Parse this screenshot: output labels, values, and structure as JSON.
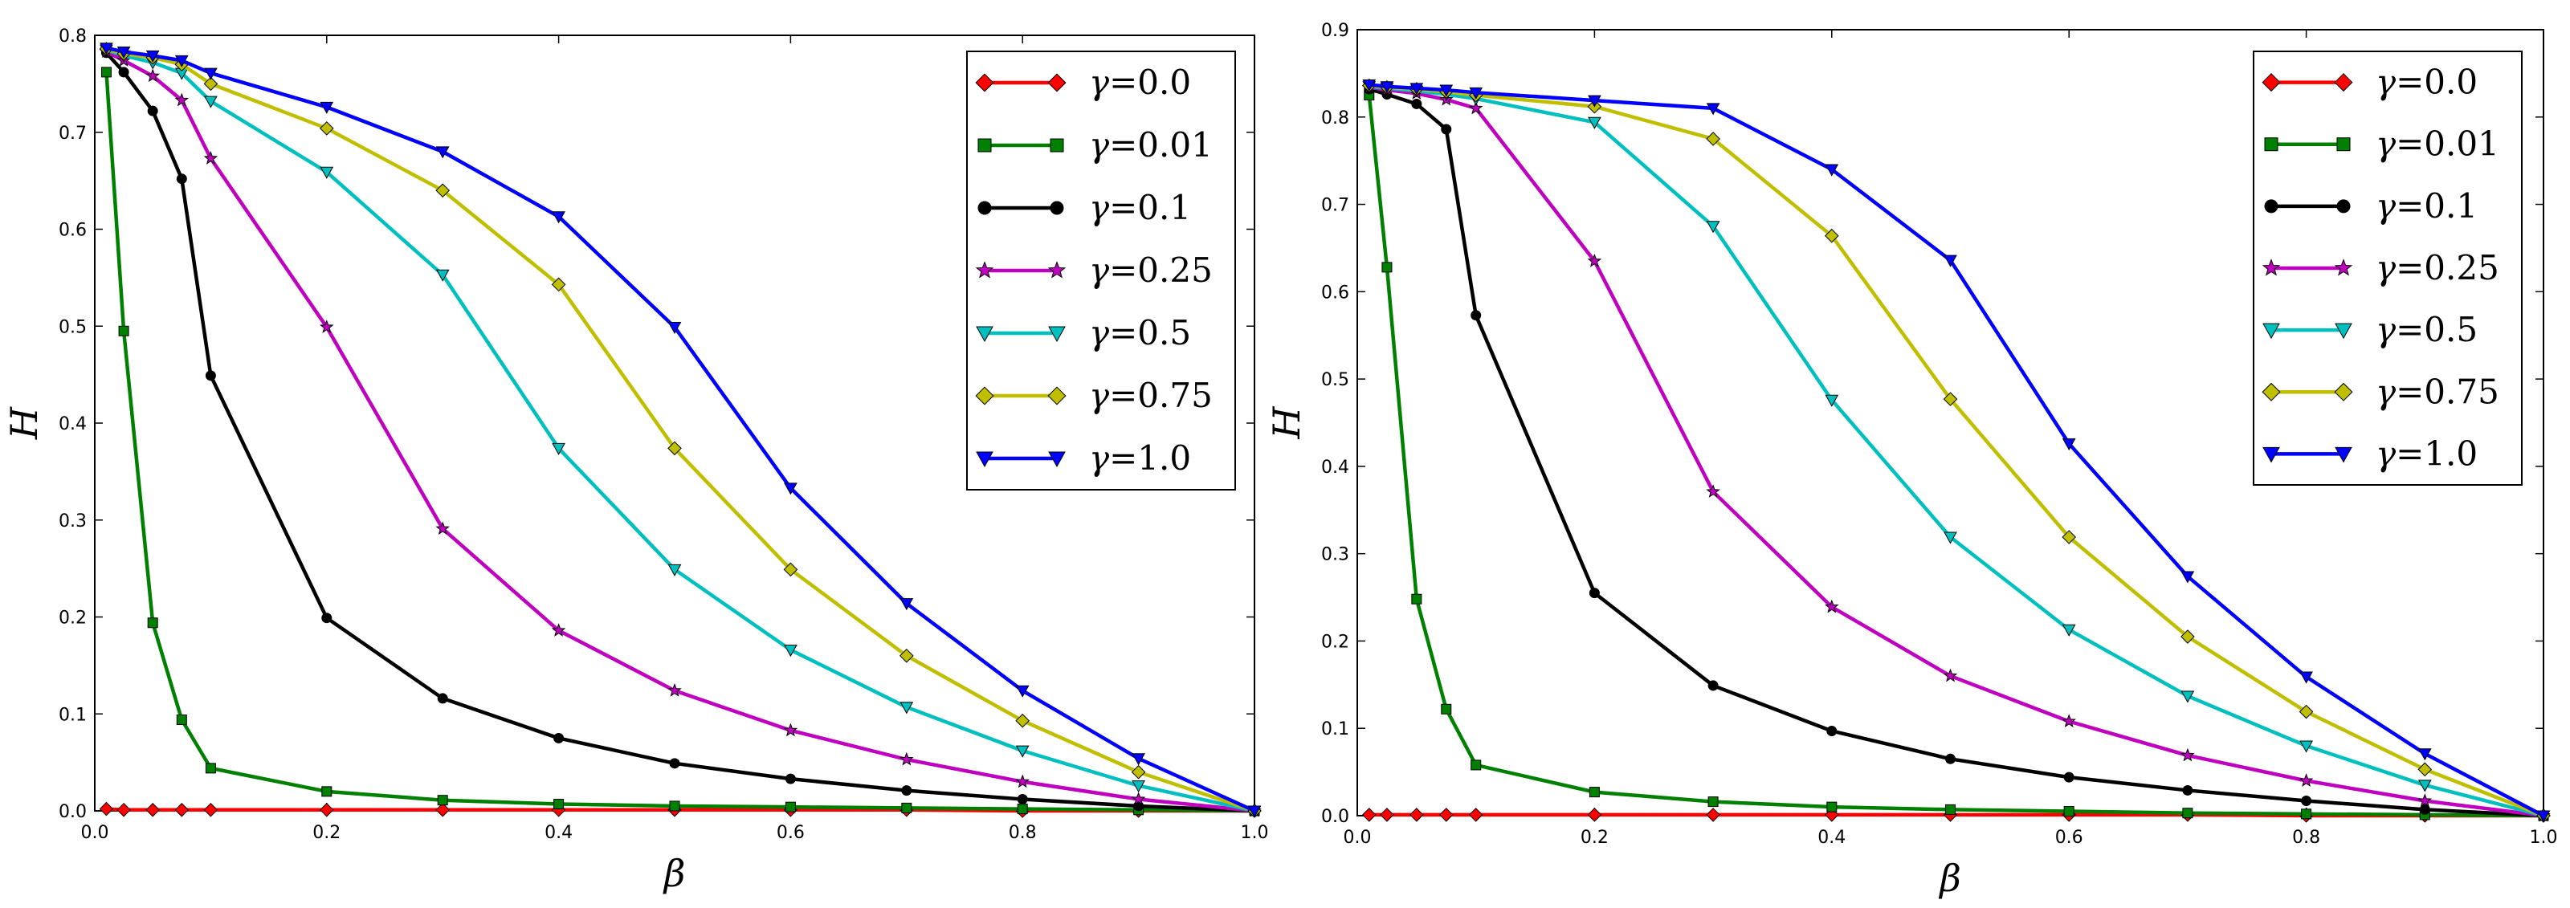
{
  "chart_data": [
    {
      "type": "line",
      "title": "",
      "xlabel": "β",
      "ylabel": "H",
      "xlim": [
        0.0,
        1.0
      ],
      "ylim": [
        0.0,
        0.8
      ],
      "xticks": [
        "0.0",
        "0.2",
        "0.4",
        "0.6",
        "0.8",
        "1.0"
      ],
      "yticks": [
        "0.0",
        "0.1",
        "0.2",
        "0.3",
        "0.4",
        "0.5",
        "0.6",
        "0.7",
        "0.8"
      ],
      "xtick_values": [
        0,
        0.2,
        0.4,
        0.6,
        0.8,
        1.0
      ],
      "ytick_values": [
        0,
        0.1,
        0.2,
        0.3,
        0.4,
        0.5,
        0.6,
        0.7,
        0.8
      ],
      "grid": false,
      "legend_position": "top-right",
      "series": [
        {
          "name": "γ=0.0",
          "gamma_symbol": "γ",
          "gamma_value": "=0.0",
          "color": "#ff0000",
          "marker": "diamond",
          "x": [
            0.01,
            0.025,
            0.05,
            0.075,
            0.1,
            0.2,
            0.3,
            0.4,
            0.5,
            0.6,
            0.7,
            0.8,
            0.9,
            1.0
          ],
          "y": [
            0.002,
            0.001,
            0.001,
            0.001,
            0.001,
            0.001,
            0.001,
            0.001,
            0.001,
            0.001,
            0.001,
            0.0,
            0.0,
            0.0
          ]
        },
        {
          "name": "γ=0.01",
          "gamma_symbol": "γ",
          "gamma_value": "=0.01",
          "color": "#008000",
          "marker": "square",
          "x": [
            0.01,
            0.025,
            0.05,
            0.075,
            0.1,
            0.2,
            0.3,
            0.4,
            0.5,
            0.6,
            0.7,
            0.8,
            0.9,
            1.0
          ],
          "y": [
            0.762,
            0.495,
            0.194,
            0.094,
            0.044,
            0.02,
            0.011,
            0.007,
            0.005,
            0.004,
            0.003,
            0.002,
            0.001,
            0.0
          ]
        },
        {
          "name": "γ=0.1",
          "gamma_symbol": "γ",
          "gamma_value": "=0.1",
          "color": "#000000",
          "marker": "circle",
          "x": [
            0.01,
            0.025,
            0.05,
            0.075,
            0.1,
            0.2,
            0.3,
            0.4,
            0.5,
            0.6,
            0.7,
            0.8,
            0.9,
            1.0
          ],
          "y": [
            0.782,
            0.762,
            0.722,
            0.652,
            0.449,
            0.199,
            0.116,
            0.075,
            0.049,
            0.033,
            0.021,
            0.012,
            0.005,
            0.0
          ]
        },
        {
          "name": "γ=0.25",
          "gamma_symbol": "γ",
          "gamma_value": "=0.25",
          "color": "#bf00bf",
          "marker": "star",
          "x": [
            0.01,
            0.025,
            0.05,
            0.075,
            0.1,
            0.2,
            0.3,
            0.4,
            0.5,
            0.6,
            0.7,
            0.8,
            0.9,
            1.0
          ],
          "y": [
            0.783,
            0.774,
            0.758,
            0.733,
            0.673,
            0.499,
            0.291,
            0.186,
            0.124,
            0.083,
            0.053,
            0.03,
            0.012,
            0.0
          ]
        },
        {
          "name": "γ=0.5",
          "gamma_symbol": "γ",
          "gamma_value": "=0.5",
          "color": "#00bfbf",
          "marker": "triangle-down",
          "x": [
            0.01,
            0.025,
            0.05,
            0.075,
            0.1,
            0.2,
            0.3,
            0.4,
            0.5,
            0.6,
            0.7,
            0.8,
            0.9,
            1.0
          ],
          "y": [
            0.785,
            0.779,
            0.772,
            0.761,
            0.732,
            0.659,
            0.553,
            0.374,
            0.249,
            0.166,
            0.107,
            0.062,
            0.026,
            0.0
          ]
        },
        {
          "name": "γ=0.75",
          "gamma_symbol": "γ",
          "gamma_value": "=0.75",
          "color": "#bfbf00",
          "marker": "diamond",
          "x": [
            0.01,
            0.025,
            0.05,
            0.075,
            0.1,
            0.2,
            0.3,
            0.4,
            0.5,
            0.6,
            0.7,
            0.8,
            0.9,
            1.0
          ],
          "y": [
            0.786,
            0.781,
            0.777,
            0.77,
            0.75,
            0.704,
            0.64,
            0.543,
            0.374,
            0.249,
            0.16,
            0.093,
            0.04,
            0.0
          ]
        },
        {
          "name": "γ=1.0",
          "gamma_symbol": "γ",
          "gamma_value": "=1.0",
          "color": "#0000ff",
          "marker": "triangle-down",
          "x": [
            0.01,
            0.025,
            0.05,
            0.075,
            0.1,
            0.2,
            0.3,
            0.4,
            0.5,
            0.6,
            0.7,
            0.8,
            0.9,
            1.0
          ],
          "y": [
            0.787,
            0.783,
            0.779,
            0.774,
            0.761,
            0.726,
            0.68,
            0.613,
            0.499,
            0.333,
            0.214,
            0.124,
            0.054,
            0.0
          ]
        }
      ]
    },
    {
      "type": "line",
      "title": "",
      "xlabel": "β",
      "ylabel": "H",
      "xlim": [
        0.0,
        1.0
      ],
      "ylim": [
        0.0,
        0.9
      ],
      "xticks": [
        "0.0",
        "0.2",
        "0.4",
        "0.6",
        "0.8",
        "1.0"
      ],
      "yticks": [
        "0.0",
        "0.1",
        "0.2",
        "0.3",
        "0.4",
        "0.5",
        "0.6",
        "0.7",
        "0.8",
        "0.9"
      ],
      "xtick_values": [
        0,
        0.2,
        0.4,
        0.6,
        0.8,
        1.0
      ],
      "ytick_values": [
        0,
        0.1,
        0.2,
        0.3,
        0.4,
        0.5,
        0.6,
        0.7,
        0.8,
        0.9
      ],
      "grid": false,
      "legend_position": "top-right",
      "series": [
        {
          "name": "γ=0.0",
          "gamma_symbol": "γ",
          "gamma_value": "=0.0",
          "color": "#ff0000",
          "marker": "diamond",
          "x": [
            0.01,
            0.025,
            0.05,
            0.075,
            0.1,
            0.2,
            0.3,
            0.4,
            0.5,
            0.6,
            0.7,
            0.8,
            0.9,
            1.0
          ],
          "y": [
            0.001,
            0.001,
            0.001,
            0.001,
            0.001,
            0.001,
            0.001,
            0.001,
            0.001,
            0.001,
            0.001,
            0.0,
            0.0,
            0.0
          ]
        },
        {
          "name": "γ=0.01",
          "gamma_symbol": "γ",
          "gamma_value": "=0.01",
          "color": "#008000",
          "marker": "square",
          "x": [
            0.01,
            0.025,
            0.05,
            0.075,
            0.1,
            0.2,
            0.3,
            0.4,
            0.5,
            0.6,
            0.7,
            0.8,
            0.9,
            1.0
          ],
          "y": [
            0.825,
            0.628,
            0.248,
            0.122,
            0.058,
            0.027,
            0.016,
            0.01,
            0.007,
            0.005,
            0.003,
            0.002,
            0.001,
            0.0
          ]
        },
        {
          "name": "γ=0.1",
          "gamma_symbol": "γ",
          "gamma_value": "=0.1",
          "color": "#000000",
          "marker": "circle",
          "x": [
            0.01,
            0.025,
            0.05,
            0.075,
            0.1,
            0.2,
            0.3,
            0.4,
            0.5,
            0.6,
            0.7,
            0.8,
            0.9,
            1.0
          ],
          "y": [
            0.832,
            0.826,
            0.815,
            0.786,
            0.573,
            0.255,
            0.149,
            0.097,
            0.065,
            0.044,
            0.029,
            0.017,
            0.007,
            0.0
          ]
        },
        {
          "name": "γ=0.25",
          "gamma_symbol": "γ",
          "gamma_value": "=0.25",
          "color": "#bf00bf",
          "marker": "star",
          "x": [
            0.01,
            0.025,
            0.05,
            0.075,
            0.1,
            0.2,
            0.3,
            0.4,
            0.5,
            0.6,
            0.7,
            0.8,
            0.9,
            1.0
          ],
          "y": [
            0.834,
            0.831,
            0.827,
            0.82,
            0.81,
            0.635,
            0.371,
            0.239,
            0.16,
            0.108,
            0.069,
            0.04,
            0.017,
            0.0
          ]
        },
        {
          "name": "γ=0.5",
          "gamma_symbol": "γ",
          "gamma_value": "=0.5",
          "color": "#00bfbf",
          "marker": "triangle-down",
          "x": [
            0.01,
            0.025,
            0.05,
            0.075,
            0.1,
            0.2,
            0.3,
            0.4,
            0.5,
            0.6,
            0.7,
            0.8,
            0.9,
            1.0
          ],
          "y": [
            0.835,
            0.833,
            0.83,
            0.826,
            0.821,
            0.794,
            0.675,
            0.476,
            0.319,
            0.213,
            0.137,
            0.08,
            0.035,
            0.0
          ]
        },
        {
          "name": "γ=0.75",
          "gamma_symbol": "γ",
          "gamma_value": "=0.75",
          "color": "#bfbf00",
          "marker": "diamond",
          "x": [
            0.01,
            0.025,
            0.05,
            0.075,
            0.1,
            0.2,
            0.3,
            0.4,
            0.5,
            0.6,
            0.7,
            0.8,
            0.9,
            1.0
          ],
          "y": [
            0.836,
            0.834,
            0.832,
            0.829,
            0.825,
            0.812,
            0.775,
            0.664,
            0.477,
            0.319,
            0.205,
            0.119,
            0.053,
            0.0
          ]
        },
        {
          "name": "γ=1.0",
          "gamma_symbol": "γ",
          "gamma_value": "=1.0",
          "color": "#0000ff",
          "marker": "triangle-down",
          "x": [
            0.01,
            0.025,
            0.05,
            0.075,
            0.1,
            0.2,
            0.3,
            0.4,
            0.5,
            0.6,
            0.7,
            0.8,
            0.9,
            1.0
          ],
          "y": [
            0.837,
            0.835,
            0.833,
            0.831,
            0.828,
            0.819,
            0.81,
            0.74,
            0.636,
            0.426,
            0.274,
            0.159,
            0.071,
            0.0
          ]
        }
      ]
    }
  ]
}
